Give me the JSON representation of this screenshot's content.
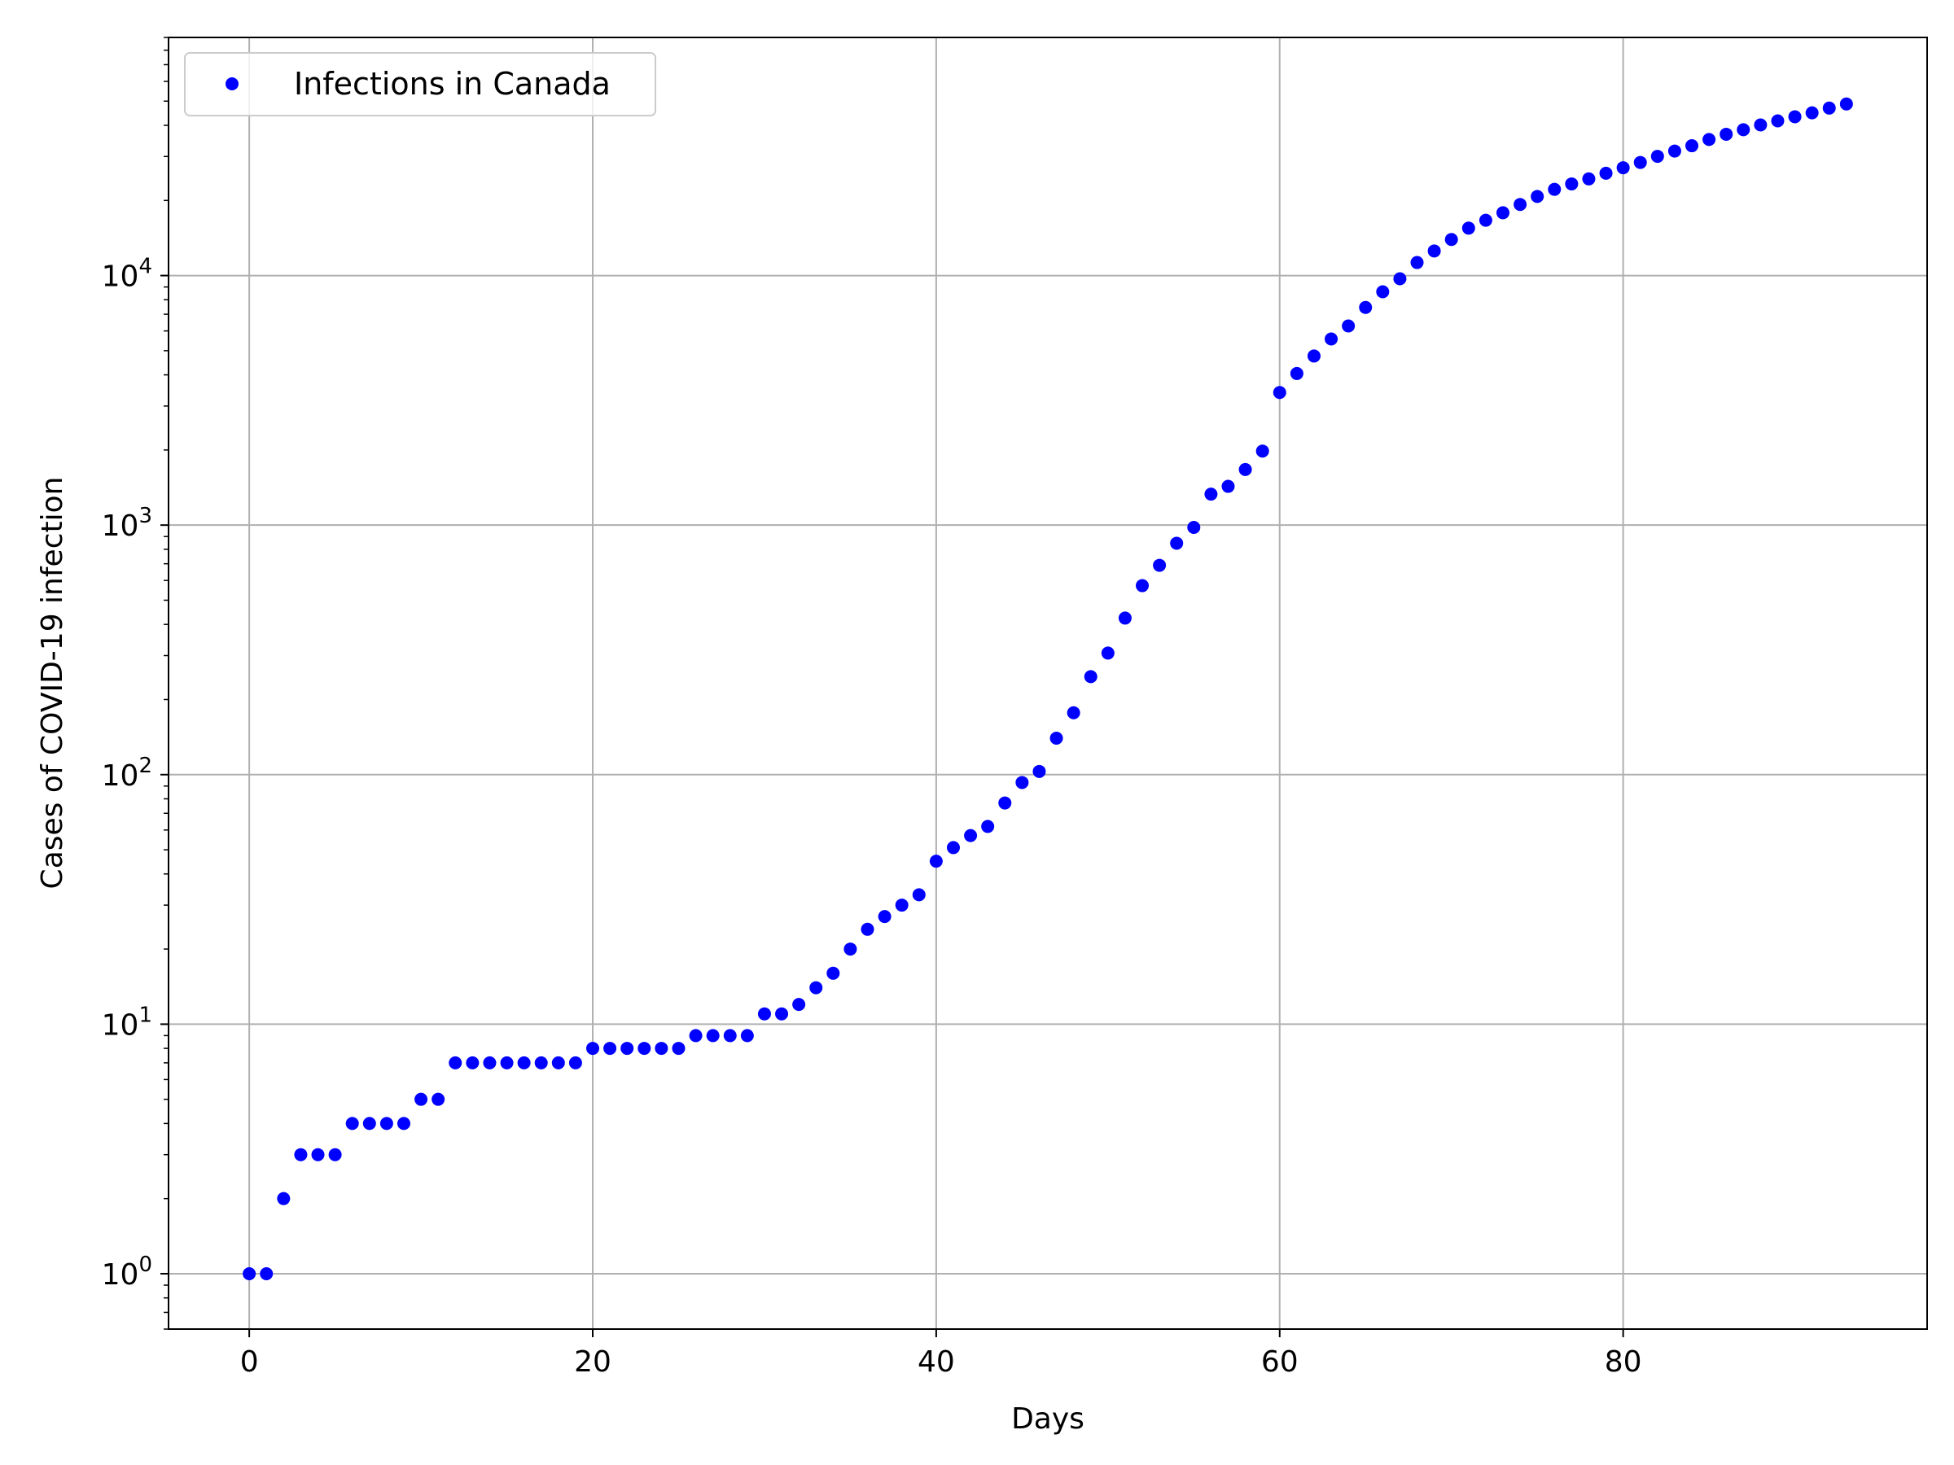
{
  "chart_data": {
    "type": "scatter",
    "title": "",
    "xlabel": "Days",
    "ylabel": "Cases of COVID-19 infection",
    "xlim": [
      -4.7,
      97.7
    ],
    "ylim": [
      0.6,
      90000
    ],
    "yscale": "log",
    "grid": true,
    "legend_position": "top-left",
    "x_ticks": [
      0,
      20,
      40,
      60,
      80
    ],
    "y_ticks": [
      {
        "value": 1,
        "base": "10",
        "exp": "0"
      },
      {
        "value": 10,
        "base": "10",
        "exp": "1"
      },
      {
        "value": 100,
        "base": "10",
        "exp": "2"
      },
      {
        "value": 1000,
        "base": "10",
        "exp": "3"
      },
      {
        "value": 10000,
        "base": "10",
        "exp": "4"
      }
    ],
    "series": [
      {
        "name": "Infections in Canada",
        "color": "#0000ff",
        "marker": "dot",
        "x": [
          0,
          1,
          2,
          3,
          4,
          5,
          6,
          7,
          8,
          9,
          10,
          11,
          12,
          13,
          14,
          15,
          16,
          17,
          18,
          19,
          20,
          21,
          22,
          23,
          24,
          25,
          26,
          27,
          28,
          29,
          30,
          31,
          32,
          33,
          34,
          35,
          36,
          37,
          38,
          39,
          40,
          41,
          42,
          43,
          44,
          45,
          46,
          47,
          48,
          49,
          50,
          51,
          52,
          53,
          54,
          55,
          56,
          57,
          58,
          59,
          60,
          61,
          62,
          63,
          64,
          65,
          66,
          67,
          68,
          69,
          70,
          71,
          72,
          73,
          74,
          75,
          76,
          77,
          78,
          79,
          80,
          81,
          82,
          83,
          84,
          85,
          86,
          87,
          88,
          89,
          90,
          91,
          92,
          93
        ],
        "y": [
          1,
          1,
          2,
          3,
          3,
          3,
          4,
          4,
          4,
          4,
          5,
          5,
          7,
          7,
          7,
          7,
          7,
          7,
          7,
          7,
          8,
          8,
          8,
          8,
          8,
          8,
          9,
          9,
          9,
          9,
          11,
          11,
          12,
          14,
          16,
          20,
          24,
          27,
          30,
          33,
          45,
          51,
          57,
          62,
          77,
          93,
          103,
          140,
          177,
          247,
          307,
          424,
          572,
          690,
          846,
          979,
          1331,
          1430,
          1670,
          1980,
          3400,
          4050,
          4760,
          5570,
          6280,
          7450,
          8610,
          9710,
          11280,
          12550,
          13950,
          15490,
          16660,
          17850,
          19270,
          20750,
          22150,
          23300,
          24400,
          25700,
          27050,
          28400,
          30050,
          31550,
          33140,
          35100,
          36840,
          38410,
          40150,
          41690,
          43290,
          44880,
          46900,
          48700
        ]
      }
    ]
  }
}
